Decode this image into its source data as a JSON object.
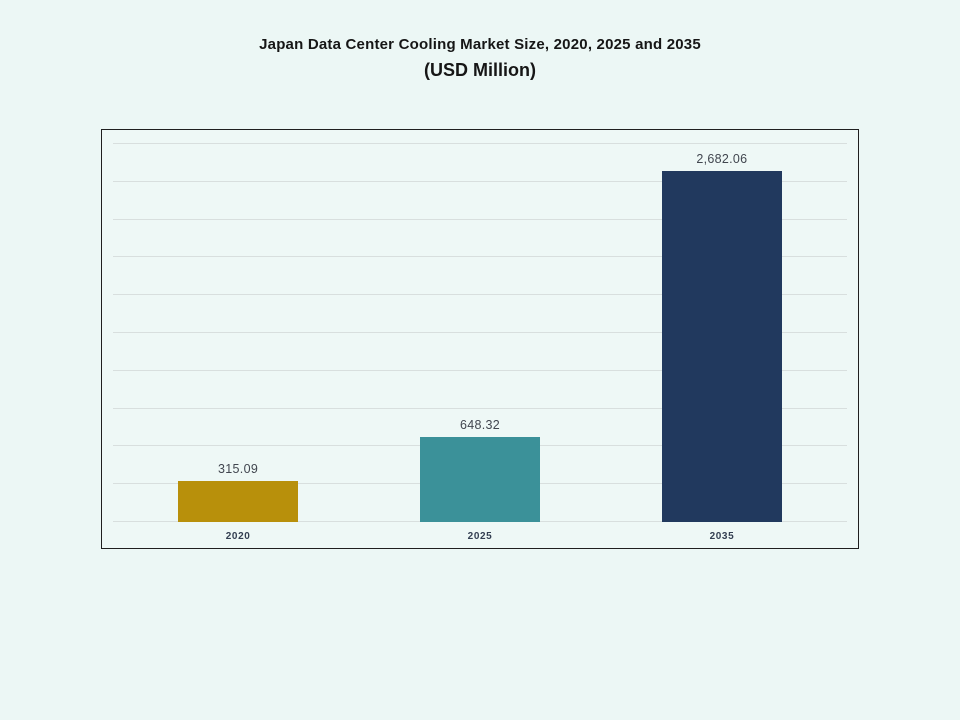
{
  "header": {
    "title_line1": "Japan Data Center Cooling Market Size, 2020, 2025 and 2035",
    "title_line2": "(USD Million)"
  },
  "chart_data": {
    "type": "bar",
    "title": "Japan Data Center Cooling Market Size, 2020, 2025 and 2035",
    "subtitle": "(USD Million)",
    "categories": [
      "2020",
      "2025",
      "2035"
    ],
    "values": [
      315.09,
      648.32,
      2682.06
    ],
    "value_labels": [
      "315.09",
      "648.32",
      "2,682.06"
    ],
    "bar_colors": [
      "#b8900b",
      "#3b9199",
      "#21395e"
    ],
    "xlabel": "",
    "ylabel": "",
    "ylim": [
      0,
      2890
    ],
    "grid": true,
    "gridline_count": 11,
    "legend": "none",
    "yaxis_tick_labels_visible": false
  },
  "colors": {
    "background": "#ecf7f5",
    "plot_border": "#1f1f1f",
    "gridline": "#d8dfde",
    "title_text": "#161616",
    "value_label_text": "#41464f",
    "category_label_text": "#333f52"
  }
}
